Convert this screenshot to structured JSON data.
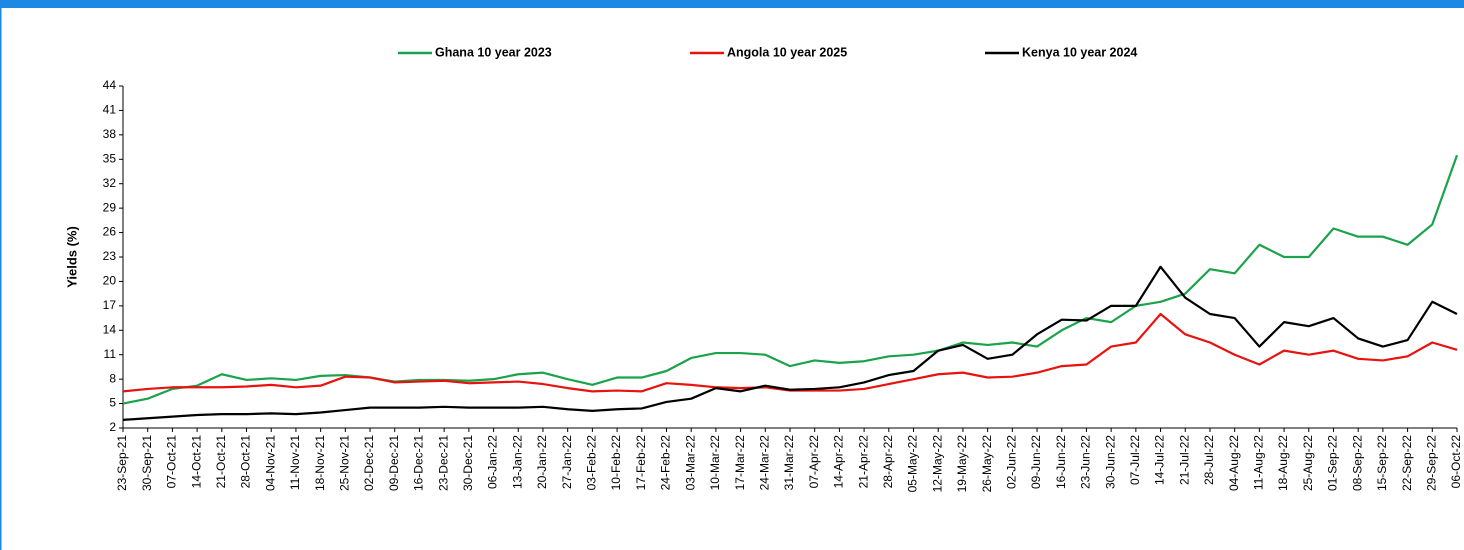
{
  "chart_data": {
    "type": "line",
    "y_label": "Yields (%)",
    "categories": [
      "23-Sep-21",
      "30-Sep-21",
      "07-Oct-21",
      "14-Oct-21",
      "21-Oct-21",
      "28-Oct-21",
      "04-Nov-21",
      "11-Nov-21",
      "18-Nov-21",
      "25-Nov-21",
      "02-Dec-21",
      "09-Dec-21",
      "16-Dec-21",
      "23-Dec-21",
      "30-Dec-21",
      "06-Jan-22",
      "13-Jan-22",
      "20-Jan-22",
      "27-Jan-22",
      "03-Feb-22",
      "10-Feb-22",
      "17-Feb-22",
      "24-Feb-22",
      "03-Mar-22",
      "10-Mar-22",
      "17-Mar-22",
      "24-Mar-22",
      "31-Mar-22",
      "07-Apr-22",
      "14-Apr-22",
      "21-Apr-22",
      "28-Apr-22",
      "05-May-22",
      "12-May-22",
      "19-May-22",
      "26-May-22",
      "02-Jun-22",
      "09-Jun-22",
      "16-Jun-22",
      "23-Jun-22",
      "30-Jun-22",
      "07-Jul-22",
      "14-Jul-22",
      "21-Jul-22",
      "28-Jul-22",
      "04-Aug-22",
      "11-Aug-22",
      "18-Aug-22",
      "25-Aug-22",
      "01-Sep-22",
      "08-Sep-22",
      "15-Sep-22",
      "22-Sep-22",
      "29-Sep-22",
      "06-Oct-22"
    ],
    "series": [
      {
        "name": "Ghana 10 year 2023",
        "color": "#1aa34a",
        "values": [
          5.0,
          5.6,
          6.8,
          7.2,
          8.6,
          7.9,
          8.1,
          7.9,
          8.4,
          8.5,
          8.2,
          7.7,
          7.9,
          7.9,
          7.8,
          8.0,
          8.6,
          8.8,
          8.0,
          7.3,
          8.2,
          8.2,
          9.0,
          10.6,
          11.2,
          11.2,
          11.0,
          9.6,
          10.3,
          10.0,
          10.2,
          10.8,
          11.0,
          11.5,
          12.5,
          12.2,
          12.5,
          12.0,
          14.0,
          15.5,
          15.0,
          17.0,
          17.5,
          18.5,
          21.5,
          21.0,
          24.5,
          23.0,
          23.0,
          26.5,
          25.5,
          25.5,
          24.5,
          27.0,
          35.5
        ]
      },
      {
        "name": "Angola 10 year 2025",
        "color": "#e8130f",
        "values": [
          6.5,
          6.8,
          7.0,
          7.0,
          7.0,
          7.1,
          7.3,
          7.0,
          7.2,
          8.3,
          8.2,
          7.6,
          7.7,
          7.8,
          7.5,
          7.6,
          7.7,
          7.4,
          6.9,
          6.5,
          6.6,
          6.5,
          7.5,
          7.3,
          7.0,
          6.9,
          7.0,
          6.6,
          6.6,
          6.6,
          6.8,
          7.4,
          8.0,
          8.6,
          8.8,
          8.2,
          8.3,
          8.8,
          9.6,
          9.8,
          12.0,
          12.5,
          16.0,
          13.5,
          12.5,
          11.0,
          9.8,
          11.5,
          11.0,
          11.5,
          10.5,
          10.3,
          10.8,
          12.5,
          11.6
        ]
      },
      {
        "name": "Kenya 10 year 2024",
        "color": "#000000",
        "values": [
          3.0,
          3.2,
          3.4,
          3.6,
          3.7,
          3.7,
          3.8,
          3.7,
          3.9,
          4.2,
          4.5,
          4.5,
          4.5,
          4.6,
          4.5,
          4.5,
          4.5,
          4.6,
          4.3,
          4.1,
          4.3,
          4.4,
          5.2,
          5.6,
          6.9,
          6.5,
          7.2,
          6.7,
          6.8,
          7.0,
          7.6,
          8.5,
          9.0,
          11.5,
          12.2,
          10.5,
          11.0,
          13.5,
          15.3,
          15.2,
          17.0,
          17.0,
          21.8,
          18.0,
          16.0,
          15.5,
          12.0,
          15.0,
          14.5,
          15.5,
          13.0,
          12.0,
          12.8,
          17.5,
          16.0
        ]
      }
    ],
    "ylim": [
      2,
      44
    ],
    "yticks": [
      2,
      5,
      8,
      11,
      14,
      17,
      20,
      23,
      26,
      29,
      32,
      35,
      38,
      41,
      44
    ]
  }
}
